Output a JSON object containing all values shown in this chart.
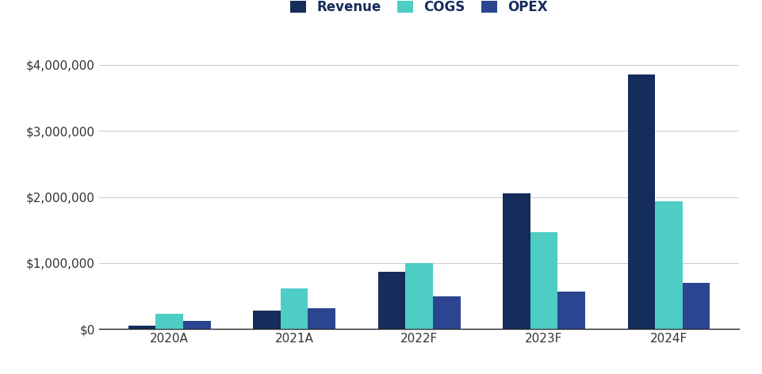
{
  "categories": [
    "2020A",
    "2021A",
    "2022F",
    "2023F",
    "2024F"
  ],
  "revenue": [
    50000,
    280000,
    870000,
    2050000,
    3850000
  ],
  "cogs": [
    230000,
    620000,
    1000000,
    1470000,
    1930000
  ],
  "opex": [
    130000,
    310000,
    490000,
    570000,
    700000
  ],
  "bar_colors": {
    "Revenue": "#152d5b",
    "COGS": "#4ecdc4",
    "OPEX": "#2b4590"
  },
  "ylim": [
    0,
    4300000
  ],
  "yticks": [
    0,
    1000000,
    2000000,
    3000000,
    4000000
  ],
  "background_color": "#ffffff",
  "grid_color": "#cccccc",
  "tick_label_color": "#333333",
  "legend_labels": [
    "Revenue",
    "COGS",
    "OPEX"
  ],
  "bar_width": 0.22,
  "figsize": [
    9.61,
    4.72
  ],
  "dpi": 100
}
